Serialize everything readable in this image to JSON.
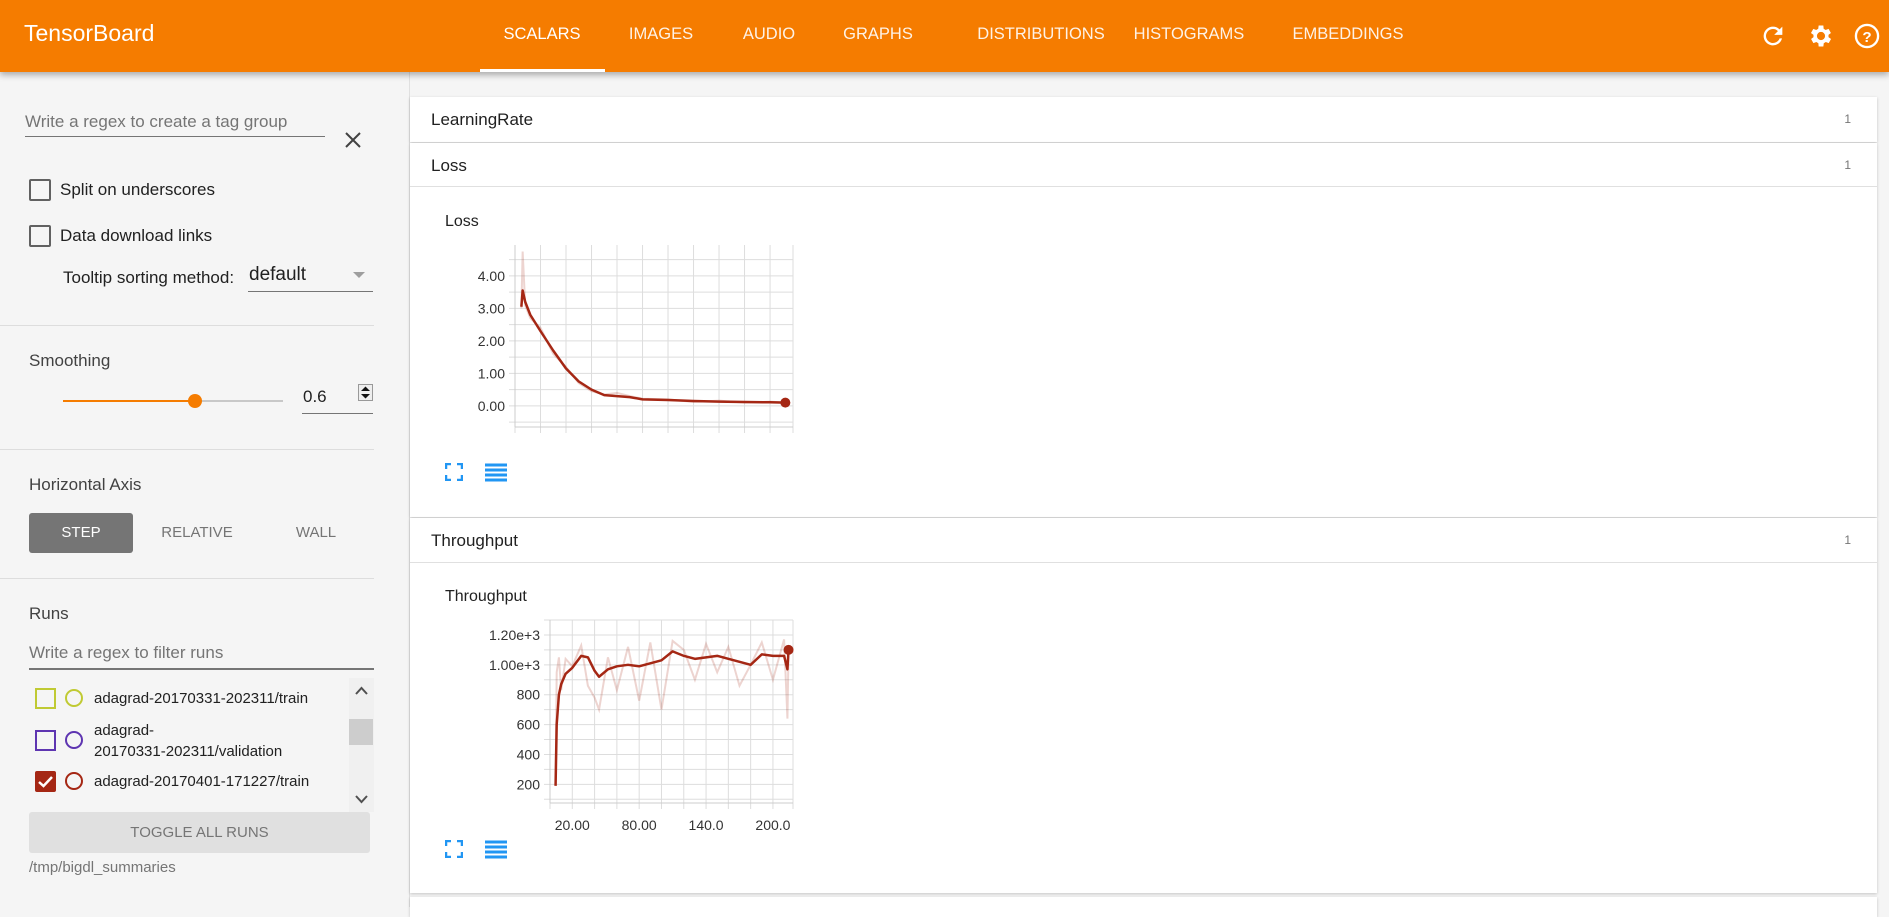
{
  "header": {
    "title": "TensorBoard",
    "tabs": [
      {
        "label": "SCALARS",
        "active": true
      },
      {
        "label": "IMAGES"
      },
      {
        "label": "AUDIO"
      },
      {
        "label": "GRAPHS"
      },
      {
        "label": "DISTRIBUTIONS"
      },
      {
        "label": "HISTOGRAMS"
      },
      {
        "label": "EMBEDDINGS"
      }
    ],
    "icons": [
      "refresh-icon",
      "settings-icon",
      "help-icon"
    ],
    "color": "#f57c00"
  },
  "sidebar": {
    "tag_regex_placeholder": "Write a regex to create a tag group",
    "split_on_underscores": {
      "label": "Split on underscores",
      "checked": false
    },
    "data_download_links": {
      "label": "Data download links",
      "checked": false
    },
    "tooltip_label": "Tooltip sorting method:",
    "tooltip_value": "default",
    "smoothing_label": "Smoothing",
    "smoothing_value": "0.6",
    "smoothing_fraction": 0.6,
    "horizontal_axis_label": "Horizontal Axis",
    "axis_buttons": [
      {
        "label": "STEP",
        "active": true
      },
      {
        "label": "RELATIVE"
      },
      {
        "label": "WALL"
      }
    ],
    "runs_label": "Runs",
    "runs_filter_placeholder": "Write a regex to filter runs",
    "runs": [
      {
        "name": "adagrad-20170331-202311/train",
        "color": "#c0ca33",
        "checked": false
      },
      {
        "name_line1": "adagrad-",
        "name_line2": "20170331-202311/validation",
        "color": "#5e35b1",
        "checked": false
      },
      {
        "name": "adagrad-20170401-171227/train",
        "color": "#a52714",
        "checked": true
      }
    ],
    "toggle_all_label": "TOGGLE ALL RUNS",
    "log_dir": "/tmp/bigdl_summaries"
  },
  "cards": [
    {
      "title": "LearningRate",
      "count": "1"
    },
    {
      "title": "Loss",
      "count": "1"
    },
    {
      "title": "Throughput",
      "count": "1"
    }
  ],
  "chart_data": [
    {
      "type": "line",
      "title": "Loss",
      "ylim": [
        -0.65,
        4.95
      ],
      "xlim": [
        0,
        218
      ],
      "yticks": [
        "0.00",
        "1.00",
        "2.00",
        "3.00",
        "4.00"
      ],
      "ytick_values": [
        0,
        1,
        2,
        3,
        4
      ],
      "xticks": [],
      "grid": true,
      "color": "#a52714",
      "x": [
        5,
        6,
        8,
        12,
        20,
        30,
        40,
        50,
        60,
        70,
        80,
        90,
        100,
        120,
        140,
        160,
        180,
        200,
        212
      ],
      "smoothed": [
        3.05,
        3.55,
        3.2,
        2.8,
        2.3,
        1.7,
        1.15,
        0.75,
        0.5,
        0.33,
        0.3,
        0.27,
        0.2,
        0.18,
        0.15,
        0.13,
        0.12,
        0.11,
        0.1
      ],
      "raw": [
        3.0,
        4.75,
        3.1,
        2.7,
        2.4,
        1.6,
        1.2,
        0.7,
        0.45,
        0.35,
        0.4,
        0.3,
        0.22,
        0.2,
        0.12,
        0.16,
        0.1,
        0.13,
        0.1
      ]
    },
    {
      "type": "line",
      "title": "Throughput",
      "ylim": [
        75,
        1300
      ],
      "xlim": [
        0,
        218
      ],
      "yticks": [
        "200",
        "400",
        "600",
        "800",
        "1.00e+3",
        "1.20e+3"
      ],
      "ytick_values": [
        200,
        400,
        600,
        800,
        1000,
        1200
      ],
      "xticks": [
        "20.00",
        "80.00",
        "140.0",
        "200.0"
      ],
      "xtick_values": [
        20,
        80,
        140,
        200
      ],
      "grid": true,
      "color": "#a52714",
      "x": [
        5,
        6,
        8,
        10,
        14,
        20,
        28,
        34,
        40,
        44,
        52,
        60,
        70,
        80,
        90,
        100,
        110,
        120,
        130,
        140,
        150,
        160,
        170,
        180,
        190,
        200,
        210,
        212,
        213,
        214
      ],
      "smoothed": [
        190,
        600,
        800,
        870,
        940,
        980,
        1060,
        1050,
        960,
        920,
        970,
        990,
        1000,
        990,
        1010,
        1030,
        1090,
        1060,
        1040,
        1050,
        1060,
        1040,
        1020,
        1000,
        1070,
        1060,
        1060,
        1000,
        970,
        1100
      ],
      "raw": [
        190,
        950,
        1050,
        830,
        1040,
        990,
        1130,
        860,
        780,
        700,
        1050,
        830,
        1120,
        760,
        1150,
        700,
        1160,
        1100,
        900,
        1140,
        950,
        1120,
        860,
        1000,
        1150,
        900,
        1170,
        820,
        640,
        1100
      ]
    }
  ]
}
